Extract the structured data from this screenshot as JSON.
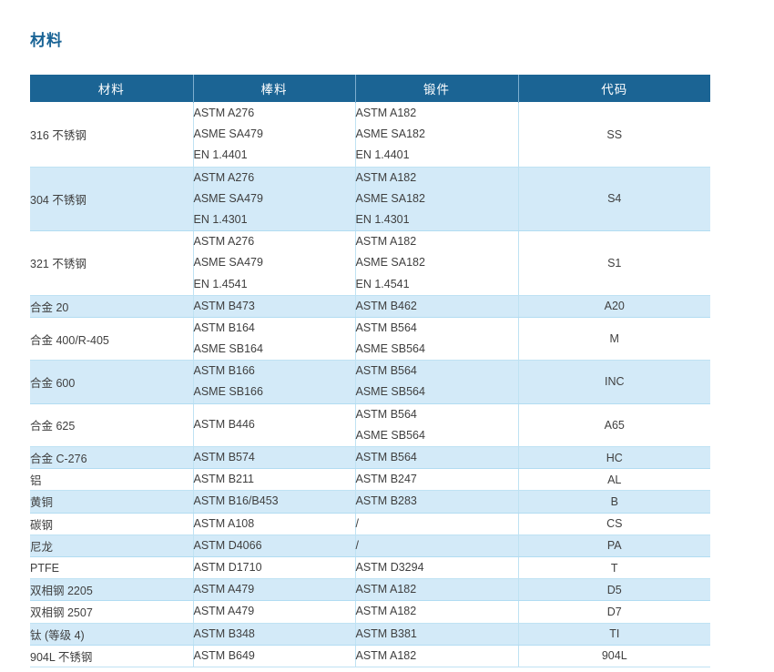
{
  "page_title": "材料",
  "colors": {
    "title_color": "#1a6496",
    "header_bg": "#1b6494",
    "header_text": "#ffffff",
    "header_divider": "#7eaecf",
    "row_alt_bg": "#d3eaf8",
    "grid_line": "#bfe2f3",
    "grid_line_alt": "#b2dcf2",
    "body_text": "#3f3f3f"
  },
  "table": {
    "columns": [
      {
        "label": "材料"
      },
      {
        "label": "棒料"
      },
      {
        "label": "锻件"
      },
      {
        "label": "代码"
      }
    ],
    "rows": [
      {
        "material": "316 不锈钢",
        "bar": [
          "ASTM A276",
          "ASME SA479",
          "EN 1.4401"
        ],
        "forging": [
          "ASTM A182",
          "ASME SA182",
          "EN 1.4401"
        ],
        "code": "SS"
      },
      {
        "material": "304 不锈钢",
        "bar": [
          "ASTM A276",
          "ASME SA479",
          "EN 1.4301"
        ],
        "forging": [
          "ASTM A182",
          "ASME SA182",
          "EN 1.4301"
        ],
        "code": "S4"
      },
      {
        "material": "321 不锈钢",
        "bar": [
          "ASTM A276",
          "ASME SA479",
          "EN 1.4541"
        ],
        "forging": [
          "ASTM A182",
          "ASME SA182",
          "EN 1.4541"
        ],
        "code": "S1"
      },
      {
        "material": "合金 20",
        "bar": [
          "ASTM B473"
        ],
        "forging": [
          "ASTM B462"
        ],
        "code": "A20"
      },
      {
        "material": "合金 400/R-405",
        "bar": [
          "ASTM B164",
          "ASME SB164"
        ],
        "forging": [
          "ASTM B564",
          "ASME SB564"
        ],
        "code": "M"
      },
      {
        "material": "合金 600",
        "bar": [
          "ASTM B166",
          "ASME SB166"
        ],
        "forging": [
          "ASTM B564",
          "ASME SB564"
        ],
        "code": "INC"
      },
      {
        "material": "合金 625",
        "bar": [
          "ASTM B446"
        ],
        "forging": [
          "ASTM B564",
          "ASME SB564"
        ],
        "code": "A65"
      },
      {
        "material": "合金 C-276",
        "bar": [
          "ASTM B574"
        ],
        "forging": [
          "ASTM B564"
        ],
        "code": "HC"
      },
      {
        "material": "铝",
        "bar": [
          "ASTM B211"
        ],
        "forging": [
          "ASTM B247"
        ],
        "code": "AL"
      },
      {
        "material": "黄铜",
        "bar": [
          "ASTM B16/B453"
        ],
        "forging": [
          "ASTM B283"
        ],
        "code": "B"
      },
      {
        "material": "碳钢",
        "bar": [
          "ASTM A108"
        ],
        "forging": [
          "/"
        ],
        "code": "CS"
      },
      {
        "material": "尼龙",
        "bar": [
          "ASTM D4066"
        ],
        "forging": [
          "/"
        ],
        "code": "PA"
      },
      {
        "material": "PTFE",
        "bar": [
          "ASTM D1710"
        ],
        "forging": [
          "ASTM D3294"
        ],
        "code": "T"
      },
      {
        "material": "双相钢 2205",
        "bar": [
          "ASTM A479"
        ],
        "forging": [
          "ASTM A182"
        ],
        "code": "D5"
      },
      {
        "material": "双相钢 2507",
        "bar": [
          "ASTM A479"
        ],
        "forging": [
          "ASTM A182"
        ],
        "code": "D7"
      },
      {
        "material": "钛 (等级 4)",
        "bar": [
          "ASTM B348"
        ],
        "forging": [
          "ASTM B381"
        ],
        "code": "TI"
      },
      {
        "material": "904L 不锈钢",
        "bar": [
          "ASTM B649"
        ],
        "forging": [
          "ASTM A182"
        ],
        "code": "904L"
      }
    ]
  }
}
